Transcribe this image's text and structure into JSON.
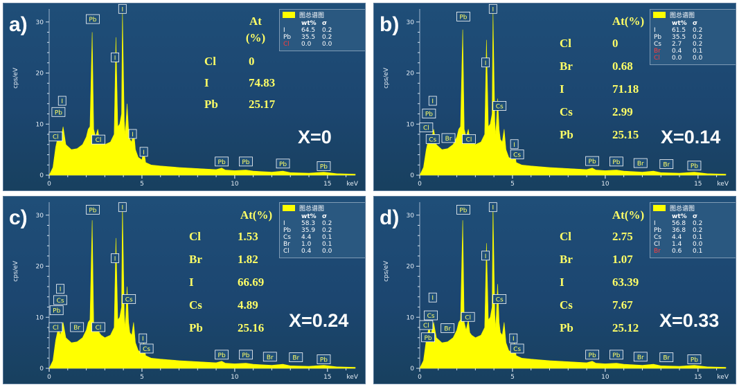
{
  "panels": [
    {
      "letter": "a)",
      "x_label": "X=0",
      "at_title": "At\n(%)",
      "at_rows": [
        {
          "el": "Cl",
          "val": "0"
        },
        {
          "el": "I",
          "val": "74.83"
        },
        {
          "el": "Pb",
          "val": "25.17"
        }
      ],
      "legend_title": "图总谱图",
      "legend_header": {
        "wt": "wt%",
        "sigma": "σ"
      },
      "legend_rows": [
        {
          "el": "I",
          "wt": "64.5",
          "sigma": "0.2",
          "red": false
        },
        {
          "el": "Pb",
          "wt": "35.5",
          "sigma": "0.2",
          "red": false
        },
        {
          "el": "Cl",
          "wt": "0.0",
          "sigma": "0.0",
          "red": true
        }
      ],
      "peak_labels": [
        {
          "text": "Pb",
          "x": 2.35,
          "y": 30.5
        },
        {
          "text": "I",
          "x": 3.95,
          "y": 32.5
        },
        {
          "text": "I",
          "x": 3.55,
          "y": 23
        },
        {
          "text": "I",
          "x": 0.7,
          "y": 14.5
        },
        {
          "text": "Pb",
          "x": 0.5,
          "y": 12.3
        },
        {
          "text": "I",
          "x": 4.5,
          "y": 8
        },
        {
          "text": "Cl",
          "x": 0.35,
          "y": 7.5
        },
        {
          "text": "Cl",
          "x": 2.65,
          "y": 6.9
        },
        {
          "text": "I",
          "x": 5.1,
          "y": 4.5
        },
        {
          "text": "Pb",
          "x": 9.3,
          "y": 2.6
        },
        {
          "text": "Pb",
          "x": 10.6,
          "y": 2.6
        },
        {
          "text": "Pb",
          "x": 12.6,
          "y": 2.2
        },
        {
          "text": "Pb",
          "x": 14.8,
          "y": 1.7
        }
      ]
    },
    {
      "letter": "b)",
      "x_label": "X=0.14",
      "at_title": "At(%)",
      "at_rows": [
        {
          "el": "Cl",
          "val": "0"
        },
        {
          "el": "Br",
          "val": "0.68"
        },
        {
          "el": "I",
          "val": "71.18"
        },
        {
          "el": "Cs",
          "val": "2.99"
        },
        {
          "el": "Pb",
          "val": "25.15"
        }
      ],
      "legend_title": "图总谱图",
      "legend_header": {
        "wt": "wt%",
        "sigma": "σ"
      },
      "legend_rows": [
        {
          "el": "I",
          "wt": "61.5",
          "sigma": "0.2",
          "red": false
        },
        {
          "el": "Pb",
          "wt": "35.5",
          "sigma": "0.2",
          "red": false
        },
        {
          "el": "Cs",
          "wt": "2.7",
          "sigma": "0.2",
          "red": false
        },
        {
          "el": "Br",
          "wt": "0.4",
          "sigma": "0.1",
          "red": true
        },
        {
          "el": "Cl",
          "wt": "0.0",
          "sigma": "0.0",
          "red": true
        }
      ],
      "peak_labels": [
        {
          "text": "Pb",
          "x": 2.35,
          "y": 31
        },
        {
          "text": "I",
          "x": 3.95,
          "y": 32.5
        },
        {
          "text": "I",
          "x": 3.55,
          "y": 22
        },
        {
          "text": "Cs",
          "x": 4.3,
          "y": 13.5
        },
        {
          "text": "I",
          "x": 0.7,
          "y": 14.5
        },
        {
          "text": "Pb",
          "x": 0.5,
          "y": 12
        },
        {
          "text": "Cl",
          "x": 0.35,
          "y": 9.3
        },
        {
          "text": "Cs",
          "x": 0.7,
          "y": 7.0
        },
        {
          "text": "Br",
          "x": 1.55,
          "y": 7.2
        },
        {
          "text": "Cl",
          "x": 2.65,
          "y": 7.0
        },
        {
          "text": "I",
          "x": 5.1,
          "y": 6
        },
        {
          "text": "Cs",
          "x": 5.25,
          "y": 4
        },
        {
          "text": "Pb",
          "x": 9.3,
          "y": 2.7
        },
        {
          "text": "Pb",
          "x": 10.6,
          "y": 2.6
        },
        {
          "text": "Br",
          "x": 11.9,
          "y": 2.3
        },
        {
          "text": "Br",
          "x": 13.3,
          "y": 2.1
        },
        {
          "text": "Pb",
          "x": 14.8,
          "y": 1.8
        }
      ]
    },
    {
      "letter": "c)",
      "x_label": "X=0.24",
      "at_title": "At(%)",
      "at_rows": [
        {
          "el": "Cl",
          "val": "1.53"
        },
        {
          "el": "Br",
          "val": "1.82"
        },
        {
          "el": "I",
          "val": "66.69"
        },
        {
          "el": "Cs",
          "val": "4.89"
        },
        {
          "el": "Pb",
          "val": "25.16"
        }
      ],
      "legend_title": "图总谱图",
      "legend_header": {
        "wt": "wt%",
        "sigma": "σ"
      },
      "legend_rows": [
        {
          "el": "I",
          "wt": "58.3",
          "sigma": "0.2",
          "red": false
        },
        {
          "el": "Pb",
          "wt": "35.9",
          "sigma": "0.2",
          "red": false
        },
        {
          "el": "Cs",
          "wt": "4.4",
          "sigma": "0.1",
          "red": false
        },
        {
          "el": "Br",
          "wt": "1.0",
          "sigma": "0.1",
          "red": false
        },
        {
          "el": "Cl",
          "wt": "0.4",
          "sigma": "0.0",
          "red": false
        }
      ],
      "peak_labels": [
        {
          "text": "Pb",
          "x": 2.35,
          "y": 31
        },
        {
          "text": "I",
          "x": 3.95,
          "y": 31.5
        },
        {
          "text": "I",
          "x": 3.55,
          "y": 21.5
        },
        {
          "text": "Cs",
          "x": 4.3,
          "y": 13.5
        },
        {
          "text": "I",
          "x": 0.6,
          "y": 15.5
        },
        {
          "text": "Cs",
          "x": 0.6,
          "y": 13.3
        },
        {
          "text": "Pb",
          "x": 0.4,
          "y": 11.3
        },
        {
          "text": "Cl",
          "x": 0.35,
          "y": 8.0
        },
        {
          "text": "Br",
          "x": 1.5,
          "y": 8.0
        },
        {
          "text": "Cl",
          "x": 2.65,
          "y": 8.0
        },
        {
          "text": "I",
          "x": 5.05,
          "y": 5.8
        },
        {
          "text": "Cs",
          "x": 5.25,
          "y": 3.8
        },
        {
          "text": "Pb",
          "x": 9.3,
          "y": 2.6
        },
        {
          "text": "Pb",
          "x": 10.6,
          "y": 2.6
        },
        {
          "text": "Br",
          "x": 11.9,
          "y": 2.2
        },
        {
          "text": "Br",
          "x": 13.3,
          "y": 2.1
        },
        {
          "text": "Pb",
          "x": 14.8,
          "y": 1.7
        }
      ]
    },
    {
      "letter": "d)",
      "x_label": "X=0.33",
      "at_title": "At(%)",
      "at_rows": [
        {
          "el": "Cl",
          "val": "2.75"
        },
        {
          "el": "Br",
          "val": "1.07"
        },
        {
          "el": "I",
          "val": "63.39"
        },
        {
          "el": "Cs",
          "val": "7.67"
        },
        {
          "el": "Pb",
          "val": "25.12"
        }
      ],
      "legend_title": "图总谱图",
      "legend_header": {
        "wt": "wt%",
        "sigma": "σ"
      },
      "legend_rows": [
        {
          "el": "I",
          "wt": "56.8",
          "sigma": "0.2",
          "red": false
        },
        {
          "el": "Pb",
          "wt": "36.8",
          "sigma": "0.2",
          "red": false
        },
        {
          "el": "Cs",
          "wt": "4.4",
          "sigma": "0.1",
          "red": false
        },
        {
          "el": "Cl",
          "wt": "1.4",
          "sigma": "0.0",
          "red": false
        },
        {
          "el": "Br",
          "wt": "0.6",
          "sigma": "0.1",
          "red": true
        }
      ],
      "peak_labels": [
        {
          "text": "Pb",
          "x": 2.35,
          "y": 31
        },
        {
          "text": "I",
          "x": 3.95,
          "y": 31.5
        },
        {
          "text": "I",
          "x": 3.55,
          "y": 22
        },
        {
          "text": "Cs",
          "x": 4.3,
          "y": 13.5
        },
        {
          "text": "I",
          "x": 0.7,
          "y": 13.8
        },
        {
          "text": "Cs",
          "x": 0.6,
          "y": 10.3
        },
        {
          "text": "Cl",
          "x": 0.35,
          "y": 8.4
        },
        {
          "text": "Pb",
          "x": 0.45,
          "y": 6.0
        },
        {
          "text": "Br",
          "x": 1.5,
          "y": 7.8
        },
        {
          "text": "Cl",
          "x": 2.6,
          "y": 10.0
        },
        {
          "text": "I",
          "x": 5.05,
          "y": 5.8
        },
        {
          "text": "Cs",
          "x": 5.25,
          "y": 3.8
        },
        {
          "text": "Pb",
          "x": 9.3,
          "y": 2.6
        },
        {
          "text": "Pb",
          "x": 10.6,
          "y": 2.6
        },
        {
          "text": "Br",
          "x": 11.9,
          "y": 2.2
        },
        {
          "text": "Br",
          "x": 13.3,
          "y": 2.1
        },
        {
          "text": "Pb",
          "x": 14.8,
          "y": 1.7
        }
      ]
    }
  ],
  "chart_data": [
    {
      "type": "area",
      "panel": "a)",
      "xlabel": "keV",
      "ylabel": "cps/eV",
      "xlim": [
        0,
        16.5
      ],
      "ylim": [
        0,
        32
      ],
      "x_ticks": [
        "0",
        "5",
        "10",
        "15"
      ],
      "y_ticks": [
        "0",
        "10",
        "20",
        "30"
      ],
      "grid": false,
      "series": [
        {
          "x": [
            0.0,
            0.2,
            0.35,
            0.5,
            0.6,
            0.75,
            0.9,
            1.2,
            1.5,
            1.8,
            2.0,
            2.1,
            2.2,
            2.32,
            2.4,
            2.5,
            2.62,
            2.7,
            2.8,
            3.0,
            3.3,
            3.5,
            3.6,
            3.7,
            3.8,
            3.9,
            3.95,
            4.05,
            4.1,
            4.2,
            4.28,
            4.35,
            4.45,
            4.55,
            4.65,
            4.8,
            5.0,
            5.1,
            5.2,
            5.5,
            6,
            7,
            8,
            9,
            9.3,
            9.5,
            10,
            10.6,
            11,
            12,
            12.6,
            13,
            14,
            14.8,
            15.5,
            16.5
          ],
          "y": [
            0,
            1.5,
            5.5,
            8,
            6.5,
            9.5,
            6,
            5,
            5.2,
            6,
            7.5,
            9,
            9.5,
            28,
            9,
            7.5,
            9,
            7,
            6.5,
            6,
            6.5,
            8,
            27,
            9.5,
            10,
            12,
            32,
            10.5,
            8,
            14,
            9,
            7,
            6.5,
            9,
            5,
            3.5,
            3,
            5,
            2.5,
            2,
            1.8,
            1.5,
            1.3,
            1.1,
            1.4,
            1,
            0.9,
            1,
            0.8,
            0.6,
            0.8,
            0.5,
            0.4,
            0.6,
            0.3,
            0.2
          ]
        }
      ]
    },
    {
      "type": "area",
      "panel": "b)",
      "xlabel": "keV",
      "ylabel": "cps/eV",
      "xlim": [
        0,
        16.5
      ],
      "ylim": [
        0,
        32
      ],
      "x_ticks": [
        "0",
        "5",
        "10",
        "15"
      ],
      "y_ticks": [
        "0",
        "10",
        "20",
        "30"
      ],
      "grid": false,
      "series": [
        {
          "x": [
            0.0,
            0.2,
            0.35,
            0.5,
            0.6,
            0.75,
            0.9,
            1.2,
            1.5,
            1.8,
            2.0,
            2.1,
            2.2,
            2.32,
            2.4,
            2.5,
            2.62,
            2.7,
            2.8,
            3.0,
            3.3,
            3.5,
            3.6,
            3.7,
            3.8,
            3.9,
            3.95,
            4.05,
            4.1,
            4.2,
            4.28,
            4.35,
            4.45,
            4.55,
            4.65,
            4.8,
            5.0,
            5.1,
            5.2,
            5.5,
            6,
            7,
            8,
            9,
            9.3,
            9.5,
            10,
            10.6,
            11,
            12,
            12.6,
            13,
            14,
            14.8,
            15.5,
            16.5
          ],
          "y": [
            0,
            1.5,
            5,
            7.5,
            6.5,
            9,
            6,
            5,
            5.2,
            6,
            7.5,
            9,
            9.5,
            28.5,
            9,
            7.5,
            9,
            7,
            6.5,
            6,
            6.5,
            8,
            26.5,
            9.5,
            10,
            12,
            32,
            10.5,
            8,
            15,
            9,
            7,
            6.5,
            9,
            5,
            3.5,
            3,
            5,
            2.5,
            2,
            1.8,
            1.5,
            1.3,
            1.1,
            1.4,
            1,
            0.9,
            1,
            0.8,
            0.6,
            0.8,
            0.5,
            0.4,
            0.6,
            0.3,
            0.2
          ]
        }
      ]
    },
    {
      "type": "area",
      "panel": "c)",
      "xlabel": "keV",
      "ylabel": "cps/eV",
      "xlim": [
        0,
        16.5
      ],
      "ylim": [
        0,
        32
      ],
      "x_ticks": [
        "0",
        "5",
        "10",
        "15"
      ],
      "y_ticks": [
        "0",
        "10",
        "20",
        "30"
      ],
      "grid": false,
      "series": [
        {
          "x": [
            0.0,
            0.2,
            0.35,
            0.5,
            0.6,
            0.75,
            0.9,
            1.2,
            1.5,
            1.8,
            2.0,
            2.1,
            2.2,
            2.32,
            2.4,
            2.5,
            2.62,
            2.7,
            2.8,
            3.0,
            3.3,
            3.5,
            3.6,
            3.7,
            3.8,
            3.9,
            3.95,
            4.05,
            4.1,
            4.2,
            4.28,
            4.35,
            4.45,
            4.55,
            4.65,
            4.8,
            5.0,
            5.1,
            5.2,
            5.5,
            6,
            7,
            8,
            9,
            9.3,
            9.5,
            10,
            10.6,
            11,
            12,
            12.6,
            13,
            14,
            14.8,
            15.5,
            16.5
          ],
          "y": [
            0,
            1.5,
            5.5,
            8,
            6.5,
            9,
            6,
            5,
            5.2,
            6,
            7.5,
            9,
            9.5,
            29,
            9,
            7.5,
            9,
            7,
            6.5,
            6,
            6.5,
            8,
            25.5,
            9.5,
            10,
            12,
            32,
            10.5,
            8,
            16,
            9,
            7,
            6.5,
            9,
            5,
            3.5,
            3,
            5,
            2.5,
            2,
            1.8,
            1.5,
            1.3,
            1.1,
            1.4,
            1,
            0.9,
            1,
            0.8,
            0.6,
            0.8,
            0.5,
            0.4,
            0.6,
            0.3,
            0.2
          ]
        }
      ]
    },
    {
      "type": "area",
      "panel": "d)",
      "xlabel": "keV",
      "ylabel": "cps/eV",
      "xlim": [
        0,
        16.5
      ],
      "ylim": [
        0,
        32
      ],
      "x_ticks": [
        "0",
        "5",
        "10",
        "15"
      ],
      "y_ticks": [
        "0",
        "10",
        "20",
        "30"
      ],
      "grid": false,
      "series": [
        {
          "x": [
            0.0,
            0.2,
            0.35,
            0.5,
            0.6,
            0.75,
            0.9,
            1.2,
            1.5,
            1.8,
            2.0,
            2.1,
            2.2,
            2.32,
            2.4,
            2.5,
            2.62,
            2.7,
            2.8,
            3.0,
            3.3,
            3.5,
            3.6,
            3.7,
            3.8,
            3.9,
            3.95,
            4.05,
            4.1,
            4.2,
            4.28,
            4.35,
            4.45,
            4.55,
            4.65,
            4.8,
            5.0,
            5.1,
            5.2,
            5.5,
            6,
            7,
            8,
            9,
            9.3,
            9.5,
            10,
            10.6,
            11,
            12,
            12.6,
            13,
            14,
            14.8,
            15.5,
            16.5
          ],
          "y": [
            0,
            1.5,
            5.5,
            8,
            6.5,
            9,
            6,
            5,
            5.2,
            6,
            7.5,
            9,
            9.5,
            29,
            9,
            7.5,
            9.5,
            7,
            6.5,
            6,
            6.5,
            8,
            24.5,
            9.5,
            10,
            12,
            32,
            10.5,
            8,
            16.5,
            9,
            7,
            6.5,
            9,
            5,
            3.5,
            3,
            5,
            2.5,
            2,
            1.8,
            1.5,
            1.3,
            1.1,
            1.4,
            1,
            0.9,
            1,
            0.8,
            0.6,
            0.8,
            0.5,
            0.4,
            0.6,
            0.3,
            0.2
          ]
        }
      ]
    }
  ]
}
